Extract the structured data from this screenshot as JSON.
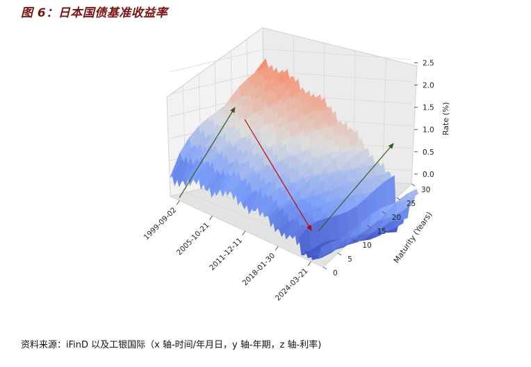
{
  "figure_title": "图 6：日本国债基准收益率",
  "source_note": "资料来源：iFinD 以及工银国际（x 轴-时间/年月日，y 轴-年期，z 轴-利率)",
  "chart_data": {
    "type": "surface-3d",
    "title": "",
    "xlabel": "",
    "ylabel": "Maturity (Years)",
    "zlabel": "Rate (%)",
    "x_ticks": [
      "1999-09-02",
      "2005-10-21",
      "2011-12-11",
      "2018-01-30",
      "2024-03-21"
    ],
    "y_ticks": [
      "0",
      "5",
      "10",
      "15",
      "20",
      "25",
      "30"
    ],
    "z_ticks": [
      "0.0",
      "0.5",
      "1.0",
      "1.5",
      "2.0",
      "2.5"
    ],
    "ylim": [
      0,
      30
    ],
    "zlim": [
      -0.3,
      2.9
    ],
    "grid": true,
    "colormap": "coolwarm",
    "colors": {
      "low": "#3b4cc0",
      "mid": "#dddddd",
      "high": "#b40426"
    },
    "trend_arrows": [
      {
        "label": "1999→2008 long-end rise",
        "color": "#3a5a1a"
      },
      {
        "label": "2008→2020 decline",
        "color": "#c00000"
      },
      {
        "label": "2020→2024 rise",
        "color": "#3a5a1a"
      }
    ]
  }
}
